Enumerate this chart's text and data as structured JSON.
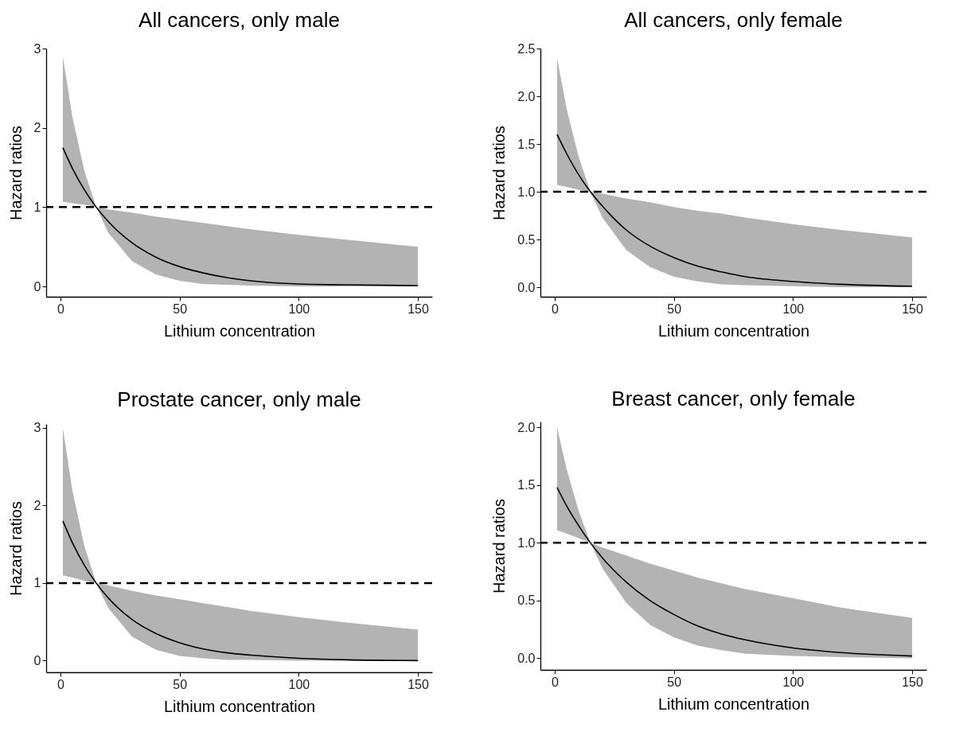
{
  "chart_data": [
    {
      "type": "line",
      "title": "All cancers, only male",
      "xlabel": "Lithium concentration",
      "ylabel": "Hazard ratios",
      "xlim": [
        -6,
        156
      ],
      "ylim": [
        -0.13,
        3
      ],
      "xticks": [
        0,
        50,
        100,
        150
      ],
      "yticks": [
        0,
        1,
        2,
        3
      ],
      "x": [
        1,
        5,
        10,
        15,
        20,
        30,
        40,
        50,
        60,
        70,
        80,
        100,
        120,
        150
      ],
      "series": [
        {
          "color": "#000000",
          "values": [
            1.75,
            1.49,
            1.22,
            1,
            0.82,
            0.55,
            0.37,
            0.25,
            0.17,
            0.11,
            0.07,
            0.03,
            0.02,
            0.01
          ],
          "lower": [
            1.07,
            1.05,
            1.03,
            1,
            0.68,
            0.32,
            0.15,
            0.07,
            0.03,
            0.02,
            0.01,
            0,
            0,
            0
          ],
          "upper": [
            2.9,
            2.14,
            1.46,
            1,
            0.97,
            0.93,
            0.88,
            0.84,
            0.8,
            0.76,
            0.72,
            0.65,
            0.59,
            0.5
          ]
        }
      ],
      "ref_lines": [
        {
          "axis": "y",
          "value": 1,
          "color": "#000000",
          "line_style": "dashed"
        }
      ]
    },
    {
      "type": "line",
      "title": "All cancers, only female",
      "xlabel": "Lithium concentration",
      "ylabel": "Hazard ratios",
      "xlim": [
        -6,
        156
      ],
      "ylim": [
        -0.1,
        2.5
      ],
      "xticks": [
        0,
        50,
        100,
        150
      ],
      "yticks": [
        {
          "value": 0,
          "label": "0.0"
        },
        {
          "value": 0.5,
          "label": "0.5"
        },
        {
          "value": 1,
          "label": "1.0"
        },
        {
          "value": 1.5,
          "label": "1.5"
        },
        {
          "value": 2,
          "label": "2.0"
        },
        {
          "value": 2.5,
          "label": "2.5"
        }
      ],
      "x": [
        1,
        5,
        10,
        15,
        20,
        30,
        40,
        50,
        60,
        70,
        80,
        100,
        120,
        150
      ],
      "series": [
        {
          "color": "#000000",
          "values": [
            1.6,
            1.4,
            1.18,
            1,
            0.85,
            0.6,
            0.43,
            0.31,
            0.22,
            0.16,
            0.11,
            0.06,
            0.03,
            0.01
          ],
          "lower": [
            1.07,
            1.05,
            1.02,
            1,
            0.73,
            0.39,
            0.21,
            0.11,
            0.06,
            0.03,
            0.02,
            0.01,
            0,
            0
          ],
          "upper": [
            2.4,
            1.87,
            1.37,
            1,
            0.98,
            0.93,
            0.89,
            0.84,
            0.8,
            0.77,
            0.73,
            0.66,
            0.6,
            0.52
          ]
        }
      ],
      "ref_lines": [
        {
          "axis": "y",
          "value": 1,
          "color": "#000000",
          "line_style": "dashed"
        }
      ]
    },
    {
      "type": "line",
      "title": "Prostate cancer, only male",
      "xlabel": "Lithium concentration",
      "ylabel": "Hazard ratios",
      "xlim": [
        -6,
        156
      ],
      "ylim": [
        -0.15,
        3.05
      ],
      "xticks": [
        0,
        50,
        100,
        150
      ],
      "yticks": [
        0,
        1,
        2,
        3
      ],
      "x": [
        1,
        5,
        10,
        15,
        20,
        30,
        40,
        50,
        60,
        70,
        80,
        100,
        120,
        150
      ],
      "series": [
        {
          "color": "#000000",
          "values": [
            1.8,
            1.52,
            1.23,
            1,
            0.81,
            0.53,
            0.35,
            0.23,
            0.15,
            0.1,
            0.07,
            0.03,
            0.01,
            0
          ],
          "lower": [
            1.1,
            1.07,
            1.03,
            1,
            0.68,
            0.31,
            0.14,
            0.06,
            0.03,
            0.01,
            0.01,
            0,
            0,
            0
          ],
          "upper": [
            3,
            2.19,
            1.48,
            1,
            0.97,
            0.9,
            0.84,
            0.79,
            0.74,
            0.69,
            0.64,
            0.56,
            0.49,
            0.4
          ]
        }
      ],
      "ref_lines": [
        {
          "axis": "y",
          "value": 1,
          "color": "#000000",
          "line_style": "dashed"
        }
      ]
    },
    {
      "type": "line",
      "title": "Breast cancer, only female",
      "xlabel": "Lithium concentration",
      "ylabel": "Hazard ratios",
      "xlim": [
        -6,
        156
      ],
      "ylim": [
        -0.1,
        2.05
      ],
      "xticks": [
        0,
        50,
        100,
        150
      ],
      "yticks": [
        {
          "value": 0,
          "label": "0.0"
        },
        {
          "value": 0.5,
          "label": "0.5"
        },
        {
          "value": 1,
          "label": "1.0"
        },
        {
          "value": 1.5,
          "label": "1.5"
        },
        {
          "value": 2,
          "label": "2.0"
        }
      ],
      "x": [
        1,
        5,
        10,
        15,
        20,
        30,
        40,
        50,
        60,
        70,
        80,
        100,
        120,
        150
      ],
      "series": [
        {
          "color": "#000000",
          "values": [
            1.48,
            1.32,
            1.15,
            1,
            0.87,
            0.66,
            0.5,
            0.38,
            0.28,
            0.21,
            0.16,
            0.09,
            0.05,
            0.02
          ],
          "lower": [
            1.11,
            1.08,
            1.04,
            1,
            0.78,
            0.48,
            0.29,
            0.18,
            0.11,
            0.07,
            0.04,
            0.02,
            0.01,
            0
          ],
          "upper": [
            2,
            1.64,
            1.28,
            1,
            0.96,
            0.89,
            0.82,
            0.76,
            0.7,
            0.65,
            0.6,
            0.52,
            0.44,
            0.35
          ]
        }
      ],
      "ref_lines": [
        {
          "axis": "y",
          "value": 1,
          "color": "#000000",
          "line_style": "dashed"
        }
      ]
    }
  ]
}
